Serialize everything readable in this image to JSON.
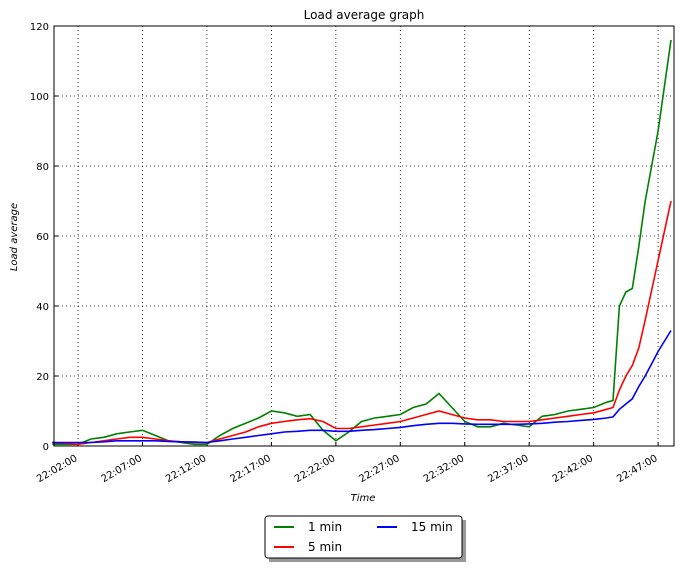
{
  "chart_data": {
    "type": "line",
    "title": "Load average graph",
    "x_label": "Time",
    "y_label": "Load average",
    "x": [
      "22:00:00",
      "22:01:00",
      "22:02:00",
      "22:03:00",
      "22:04:00",
      "22:05:00",
      "22:06:00",
      "22:07:00",
      "22:08:00",
      "22:09:00",
      "22:10:00",
      "22:11:00",
      "22:12:00",
      "22:13:00",
      "22:14:00",
      "22:15:00",
      "22:16:00",
      "22:17:00",
      "22:18:00",
      "22:19:00",
      "22:20:00",
      "22:21:00",
      "22:22:00",
      "22:23:00",
      "22:24:00",
      "22:25:00",
      "22:26:00",
      "22:27:00",
      "22:28:00",
      "22:29:00",
      "22:30:00",
      "22:31:00",
      "22:32:00",
      "22:33:00",
      "22:34:00",
      "22:35:00",
      "22:36:00",
      "22:37:00",
      "22:38:00",
      "22:39:00",
      "22:40:00",
      "22:41:00",
      "22:42:00",
      "22:43:00",
      "22:43:30",
      "22:44:00",
      "22:44:30",
      "22:45:00",
      "22:45:30",
      "22:46:00",
      "22:47:00",
      "22:48:00"
    ],
    "series": [
      {
        "name": "1 min",
        "color": "#008000",
        "values": [
          0.5,
          0.5,
          0.5,
          2,
          2.5,
          3.5,
          4,
          4.5,
          3,
          1.5,
          1,
          0.5,
          0.5,
          3,
          5,
          6.5,
          8,
          10,
          9.5,
          8.5,
          9,
          4.5,
          1.5,
          4,
          7,
          8,
          8.5,
          9,
          11,
          12,
          15,
          11,
          7,
          5.5,
          5.5,
          6.5,
          6,
          5.5,
          8.5,
          9,
          10,
          10.5,
          11,
          12.5,
          13,
          40,
          44,
          45,
          57,
          70,
          90,
          116
        ]
      },
      {
        "name": "5 min",
        "color": "#ff0000",
        "values": [
          1,
          0.8,
          0.5,
          1,
          1.5,
          2,
          2.5,
          2.5,
          2,
          1.5,
          1.2,
          1,
          1,
          2,
          3,
          4,
          5.5,
          6.5,
          7,
          7.5,
          7.8,
          7,
          5,
          5,
          5.5,
          6,
          6.5,
          7,
          8,
          9,
          10,
          9,
          8,
          7.5,
          7.5,
          7,
          7,
          7,
          7.5,
          8,
          8.5,
          9,
          9.5,
          10.5,
          11,
          16,
          20,
          23,
          28,
          36,
          53,
          70
        ]
      },
      {
        "name": "15 min",
        "color": "#0000ff",
        "values": [
          1,
          1,
          1,
          1,
          1.2,
          1.5,
          1.5,
          1.5,
          1.5,
          1.3,
          1.2,
          1.1,
          1,
          1.5,
          2,
          2.5,
          3,
          3.5,
          4,
          4.2,
          4.5,
          4.5,
          4.2,
          4.2,
          4.5,
          4.7,
          5,
          5.3,
          5.8,
          6.2,
          6.5,
          6.5,
          6.3,
          6.2,
          6.2,
          6.2,
          6.2,
          6.3,
          6.5,
          6.8,
          7,
          7.3,
          7.6,
          8,
          8.3,
          10.5,
          12,
          13.5,
          17,
          20,
          27,
          33
        ]
      }
    ],
    "xlim": [
      "22:00:08",
      "22:48:14"
    ],
    "xticks": [
      "22:02:00",
      "22:07:00",
      "22:12:00",
      "22:17:00",
      "22:22:00",
      "22:27:00",
      "22:32:00",
      "22:37:00",
      "22:42:00",
      "22:47:00"
    ],
    "ylim": [
      0,
      120
    ],
    "yticks": [
      0,
      20,
      40,
      60,
      80,
      100,
      120
    ],
    "grid": true,
    "legend": "lower center outside"
  }
}
